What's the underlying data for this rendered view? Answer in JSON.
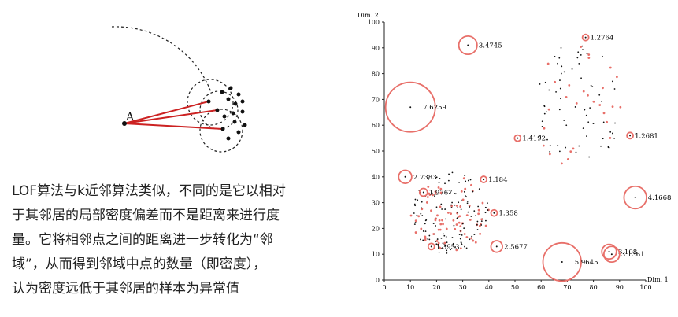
{
  "diagram": {
    "point_label": "A"
  },
  "caption": {
    "lines": [
      "LOF算法与k近邻算法类似，不同的是它以相对",
      "于其邻居的局部密度偏差而不是距离来进行度",
      "量。它将相邻点之间的距离进一步转化为“邻",
      "域”，从而得到邻域中点的数量（即密度），",
      "认为密度远低于其邻居的样本为异常值"
    ]
  },
  "colors": {
    "outlier": "#e8706a",
    "line": "#cc2222",
    "point": "#111111"
  },
  "chart_data": {
    "type": "scatter",
    "xlabel": "Dim. 1",
    "ylabel": "Dim. 2",
    "xlim": [
      0,
      100
    ],
    "ylim": [
      0,
      100
    ],
    "xticks": [
      0,
      10,
      20,
      30,
      40,
      50,
      60,
      70,
      80,
      90,
      100
    ],
    "yticks": [
      0,
      10,
      20,
      30,
      40,
      50,
      60,
      70,
      80,
      90,
      100
    ],
    "annotations": [
      {
        "label": "3.4745",
        "x": 32,
        "y": 91,
        "r": 3.5
      },
      {
        "label": "1.2764",
        "x": 77,
        "y": 94,
        "r": 0.6
      },
      {
        "label": "7.6259",
        "x": 10,
        "y": 67,
        "r": 9.5
      },
      {
        "label": "1.4192",
        "x": 51,
        "y": 55,
        "r": 1.0
      },
      {
        "label": "1.2681",
        "x": 94,
        "y": 56,
        "r": 0.6
      },
      {
        "label": "2.7383",
        "x": 8,
        "y": 40,
        "r": 2.5
      },
      {
        "label": "1.184",
        "x": 38,
        "y": 39,
        "r": 0.6
      },
      {
        "label": "1.9767",
        "x": 15,
        "y": 34,
        "r": 1.5
      },
      {
        "label": "4.1668",
        "x": 96,
        "y": 32,
        "r": 4.3
      },
      {
        "label": "1.358",
        "x": 42,
        "y": 26,
        "r": 0.8
      },
      {
        "label": "2.5677",
        "x": 43,
        "y": 13,
        "r": 2.2
      },
      {
        "label": "1.3953",
        "x": 18,
        "y": 13,
        "r": 0.6
      },
      {
        "label": "5.9645",
        "x": 68,
        "y": 7,
        "r": 7.3
      },
      {
        "label": "3.108",
        "x": 86,
        "y": 11,
        "r": 2.8
      },
      {
        "label": "3.1361",
        "x": 87,
        "y": 10,
        "r": 3.0
      }
    ],
    "clusters": [
      {
        "name": "upper-right",
        "cx": 74,
        "cy": 67,
        "rx": 17,
        "ry": 25,
        "n": 95,
        "outlier_share": 0.3
      },
      {
        "name": "lower-left",
        "cx": 25,
        "cy": 26,
        "rx": 15,
        "ry": 16,
        "n": 210,
        "outlier_share": 0.38
      }
    ]
  }
}
